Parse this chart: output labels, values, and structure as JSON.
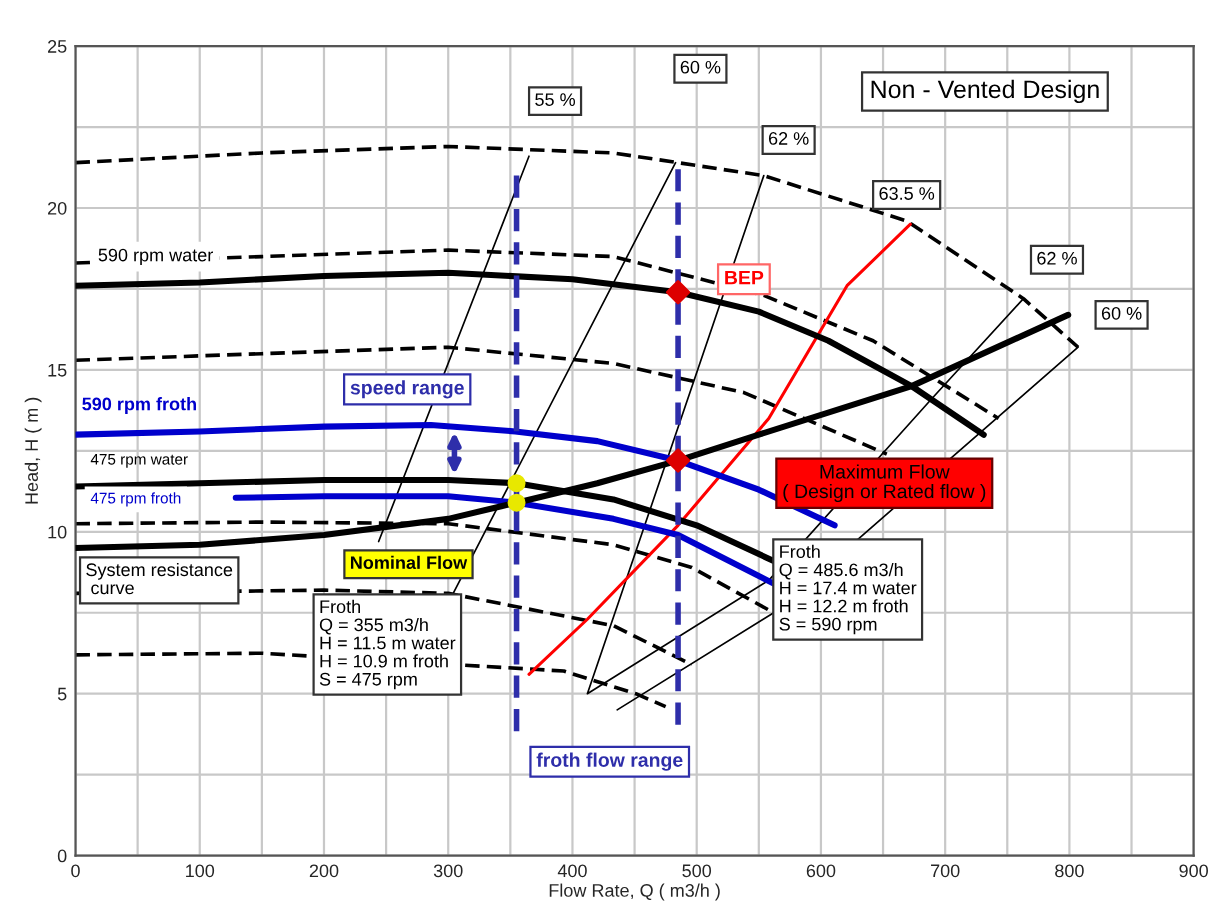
{
  "chart_data": {
    "type": "line",
    "xlabel": "Flow Rate, Q ( m3/h )",
    "ylabel": "Head, H ( m )",
    "xlim": [
      0,
      900
    ],
    "ylim": [
      0,
      25
    ],
    "xticks": [
      0,
      {
        "value": 50,
        "label": null
      },
      100,
      {
        "value": 150,
        "label": null
      },
      200,
      {
        "value": 250,
        "label": null
      },
      300,
      {
        "value": 350,
        "label": null
      },
      400,
      {
        "value": 450,
        "label": null
      },
      500,
      {
        "value": 550,
        "label": null
      },
      600,
      {
        "value": 650,
        "label": null
      },
      700,
      {
        "value": 750,
        "label": null
      },
      800,
      {
        "value": 850,
        "label": null
      },
      900
    ],
    "yticks": [
      0,
      {
        "value": 2.5,
        "label": null
      },
      5,
      {
        "value": 7.5,
        "label": null
      },
      10,
      {
        "value": 12.5,
        "label": null
      },
      15,
      {
        "value": 17.5,
        "label": null
      },
      20,
      {
        "value": 22.5,
        "label": null
      },
      25
    ],
    "grid": true,
    "series": [
      {
        "color": "#000000",
        "line_style": "dashed",
        "x": [
          0,
          150,
          300,
          433,
          554,
          669,
          763,
          807
        ],
        "values": [
          21.4,
          21.7,
          21.9,
          21.7,
          21.0,
          19.6,
          17.2,
          15.7
        ]
      },
      {
        "color": "#000000",
        "line_style": "dashed",
        "x": [
          0,
          150,
          300,
          433,
          554,
          642,
          743
        ],
        "values": [
          18.3,
          18.5,
          18.7,
          18.5,
          17.3,
          15.9,
          13.5
        ]
      },
      {
        "color": "#000000",
        "line_style": "dashed",
        "x": [
          0,
          150,
          300,
          433,
          538,
          653
        ],
        "values": [
          15.3,
          15.5,
          15.7,
          15.2,
          14.3,
          12.4
        ]
      },
      {
        "color": "#000000",
        "line_style": "dashed",
        "x": [
          0,
          150,
          300,
          433,
          496,
          562
        ],
        "values": [
          10.25,
          10.3,
          10.25,
          9.6,
          8.9,
          7.5
        ]
      },
      {
        "color": "#000000",
        "line_style": "dashed",
        "x": [
          0,
          200,
          300,
          433,
          496
        ],
        "values": [
          8.1,
          8.2,
          8.1,
          7.1,
          5.9
        ]
      },
      {
        "color": "#000000",
        "line_style": "dashed",
        "x": [
          0,
          150,
          300,
          393,
          451,
          475
        ],
        "values": [
          6.2,
          6.25,
          null,
          5.7,
          5.0,
          4.6
        ]
      },
      {
        "color": "#000000",
        "line_style": "solid",
        "x": [
          365,
          244
        ],
        "values": [
          21.6,
          9.7
        ]
      },
      {
        "color": "#000000",
        "line_style": "solid",
        "x": [
          483,
          304
        ],
        "values": [
          21.4,
          8.1
        ]
      },
      {
        "color": "#000000",
        "line_style": "solid",
        "x": [
          554,
          412,
          558,
          689,
          763
        ],
        "values": [
          21.0,
          5.0,
          8.5,
          14.1,
          17.2
        ]
      },
      {
        "color": "#000000",
        "line_style": "solid",
        "x": [
          807,
          562,
          436
        ],
        "values": [
          15.7,
          7.5,
          4.5
        ]
      },
      {
        "color": "#ff0000",
        "line_style": "solid",
        "x": [
          365,
          412,
          485,
          558,
          621,
          672
        ],
        "values": [
          5.6,
          7.3,
          10.2,
          13.5,
          17.6,
          19.5
        ]
      },
      {
        "color": "#000000",
        "line_style": "solid",
        "x": [
          0,
          100,
          200,
          300,
          400,
          485,
          550,
          606,
          673,
          731
        ],
        "values": [
          17.6,
          17.7,
          17.9,
          18.0,
          17.8,
          17.4,
          16.8,
          15.9,
          14.5,
          13.0
        ]
      },
      {
        "color": "#0000cc",
        "line_style": "solid",
        "x": [
          0,
          100,
          200,
          286,
          354,
          420,
          485,
          550,
          611
        ],
        "values": [
          13.0,
          13.1,
          13.25,
          13.3,
          13.1,
          12.8,
          12.2,
          11.3,
          10.2
        ]
      },
      {
        "color": "#000000",
        "line_style": "solid",
        "x": [
          0,
          100,
          200,
          300,
          355,
          433,
          500,
          562
        ],
        "values": [
          11.4,
          11.5,
          11.6,
          11.6,
          11.5,
          11.0,
          10.2,
          9.1
        ]
      },
      {
        "color": "#0000cc",
        "line_style": "solid",
        "x": [
          129,
          200,
          300,
          355,
          433,
          485,
          562
        ],
        "values": [
          11.05,
          11.1,
          11.1,
          10.9,
          10.4,
          9.9,
          8.4
        ]
      },
      {
        "color": "#000000",
        "line_style": "solid",
        "x": [
          0,
          100,
          200,
          300,
          355,
          420,
          485,
          550,
          673,
          799
        ],
        "values": [
          9.5,
          9.6,
          9.9,
          10.4,
          10.9,
          11.5,
          12.2,
          13.0,
          14.5,
          16.7
        ]
      },
      {
        "color": "#2e2eaa",
        "line_style": "dashed",
        "x": [
          355,
          355
        ],
        "values": [
          21.0,
          3.8
        ]
      },
      {
        "color": "#2e2eaa",
        "line_style": "dashed",
        "x": [
          485,
          485
        ],
        "values": [
          21.2,
          3.8
        ]
      },
      {
        "type": "scatter",
        "color": "#dd0000",
        "marker": "diamond",
        "x": [
          485,
          485
        ],
        "values": [
          17.4,
          12.2
        ]
      },
      {
        "type": "scatter",
        "color": "#e8e800",
        "marker": "circle",
        "x": [
          355,
          355
        ],
        "values": [
          11.5,
          10.9
        ]
      }
    ],
    "annotations": [
      "Non - Vented Design",
      "55 %",
      "60 %",
      "62 %",
      "63.5 %",
      "62 %",
      "60 %",
      "BEP",
      "590 rpm water",
      "590 rpm froth",
      "475 rpm water",
      "475 rpm froth",
      "speed range",
      "System resistance\n curve",
      "Nominal Flow",
      "Froth\nQ = 355 m3/h\nH = 11.5 m water\nH = 10.9 m froth\nS = 475 rpm",
      "froth flow range",
      "Maximum Flow\n( Design or Rated flow )",
      "Froth\nQ = 485.6 m3/h\nH = 17.4 m water\nH = 12.2 m froth\nS = 590 rpm"
    ]
  }
}
